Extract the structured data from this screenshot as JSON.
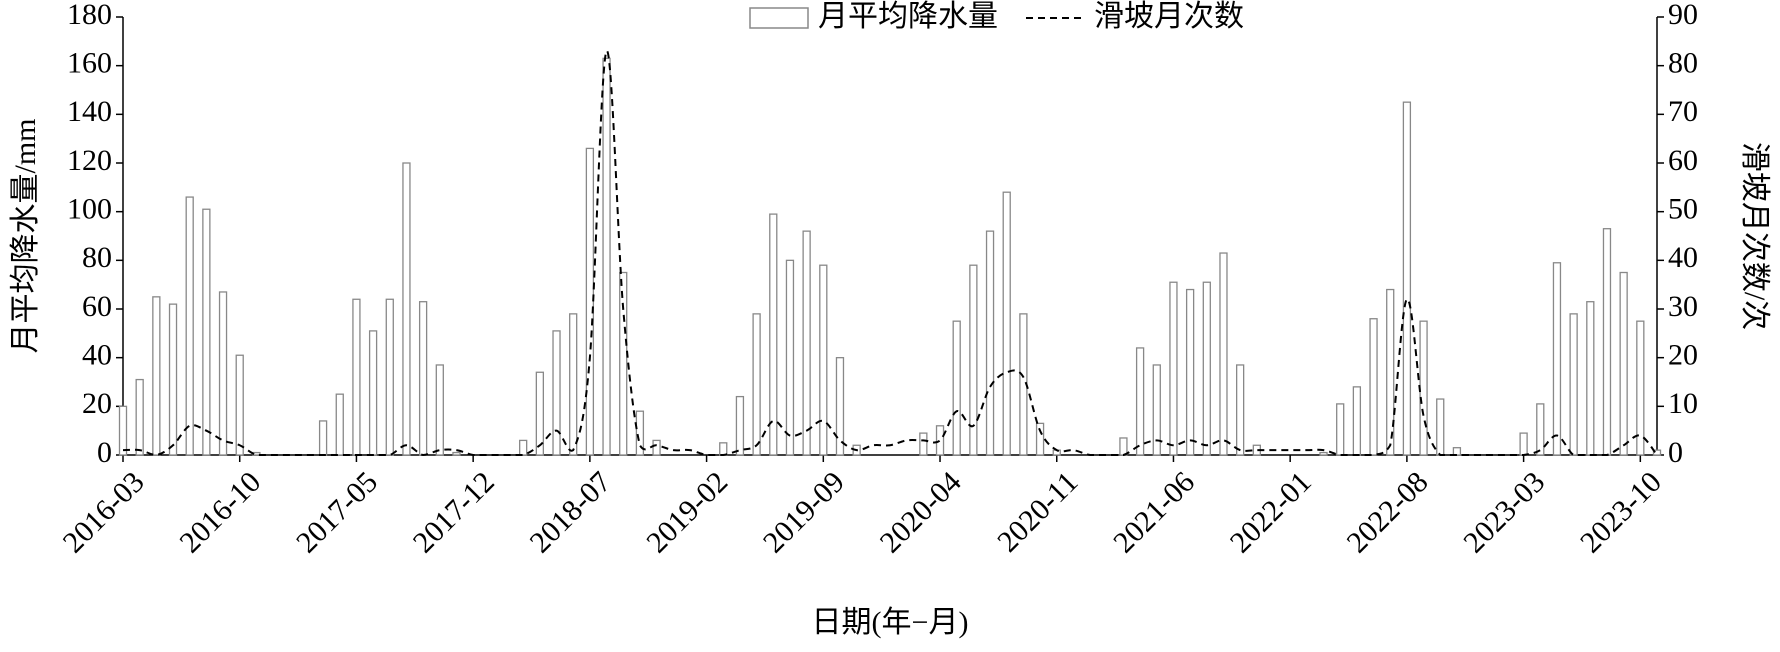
{
  "chart_data": {
    "type": "bar",
    "x_label": "日期(年−月)",
    "y_label": "月平均降水量/mm",
    "y2_label": "滑坡月次数/次",
    "categories": [
      "2016-03",
      null,
      null,
      null,
      null,
      null,
      null,
      "2016-10",
      null,
      null,
      null,
      null,
      null,
      null,
      "2017-05",
      null,
      null,
      null,
      null,
      null,
      null,
      "2017-12",
      null,
      null,
      null,
      null,
      null,
      null,
      "2018-07",
      null,
      null,
      null,
      null,
      null,
      null,
      "2019-02",
      null,
      null,
      null,
      null,
      null,
      null,
      "2019-09",
      null,
      null,
      null,
      null,
      null,
      null,
      "2020-04",
      null,
      null,
      null,
      null,
      null,
      null,
      "2020-11",
      null,
      null,
      null,
      null,
      null,
      null,
      "2021-06",
      null,
      null,
      null,
      null,
      null,
      null,
      "2022-01",
      null,
      null,
      null,
      null,
      null,
      null,
      "2022-08",
      null,
      null,
      null,
      null,
      null,
      null,
      "2023-03",
      null,
      null,
      null,
      null,
      null,
      null,
      "2023-10",
      null
    ],
    "series": [
      {
        "name": "月平均降水量",
        "type": "bar",
        "color": "#ffffff",
        "edge_color": "#888888",
        "values": [
          20,
          31,
          65,
          62,
          106,
          101,
          67,
          41,
          1,
          0,
          0,
          0,
          14,
          25,
          64,
          51,
          64,
          120,
          63,
          37,
          1,
          0,
          0,
          0,
          6,
          34,
          51,
          58,
          126,
          163,
          75,
          18,
          6,
          0,
          0,
          0,
          5,
          24,
          58,
          99,
          80,
          92,
          78,
          40,
          4,
          0,
          0,
          0,
          9,
          12,
          55,
          78,
          92,
          108,
          58,
          13,
          2,
          0,
          0,
          0,
          7,
          44,
          37,
          71,
          68,
          71,
          83,
          37,
          4,
          0,
          0,
          0,
          1,
          21,
          28,
          56,
          68,
          145,
          55,
          23,
          3,
          0,
          0,
          0,
          9,
          21,
          79,
          58,
          63,
          93,
          75,
          55,
          2
        ]
      },
      {
        "name": "滑坡月次数",
        "type": "line",
        "axis": "y2",
        "color": "#000000",
        "dashed": true,
        "values": [
          1,
          1,
          0,
          2,
          6,
          5,
          3,
          2,
          0,
          0,
          0,
          0,
          0,
          0,
          0,
          0,
          0,
          2,
          0,
          1,
          1,
          0,
          0,
          0,
          0,
          2,
          5,
          1,
          20,
          83,
          30,
          2,
          2,
          1,
          1,
          0,
          0,
          1,
          2,
          7,
          4,
          5,
          7,
          3,
          1,
          2,
          2,
          3,
          3,
          3,
          9,
          6,
          14,
          17,
          16,
          5,
          1,
          1,
          0,
          0,
          0,
          2,
          3,
          2,
          3,
          2,
          3,
          1,
          1,
          1,
          1,
          1,
          1,
          0,
          0,
          0,
          2,
          32,
          8,
          0,
          0,
          0,
          0,
          0,
          0,
          1,
          4,
          0,
          0,
          0,
          2,
          4,
          0
        ]
      }
    ],
    "ylim": [
      0,
      180
    ],
    "yticks": [
      0,
      20,
      40,
      60,
      80,
      100,
      120,
      140,
      160,
      180
    ],
    "y2lim": [
      0,
      90
    ],
    "y2ticks": [
      0,
      10,
      20,
      30,
      40,
      50,
      60,
      70,
      80,
      90
    ],
    "legend": "top"
  }
}
